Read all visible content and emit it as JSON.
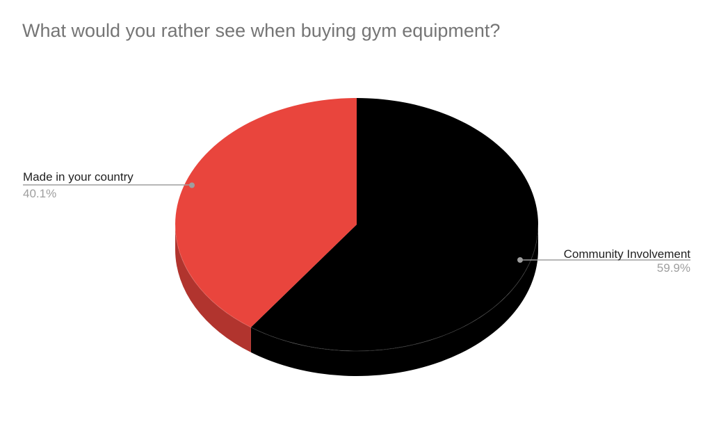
{
  "chart_data": {
    "type": "pie",
    "title": "What would you rather see when buying gym equipment?",
    "effect_3d": true,
    "categories": [
      "Community Involvement",
      "Made in your country"
    ],
    "values": [
      59.9,
      40.1
    ],
    "unit": "%",
    "slice_colors": [
      "#000000",
      "#E9453D"
    ],
    "slice_side_colors": [
      "#000000",
      "#B1342E"
    ],
    "start_angle_deg": 0,
    "direction": "clockwise",
    "legend_position": "none",
    "labels": [
      {
        "name": "Community Involvement",
        "percent": "59.9%",
        "side": "right"
      },
      {
        "name": "Made in your country",
        "percent": "40.1%",
        "side": "left"
      }
    ],
    "background": "#ffffff"
  },
  "styles": {
    "title_color": "#757575",
    "label_name_color": "#1f1f1f",
    "label_percent_color": "#9e9e9e",
    "connector_color": "#9e9e9e",
    "rim_highlight": "rgba(255,255,255,0.16)"
  }
}
